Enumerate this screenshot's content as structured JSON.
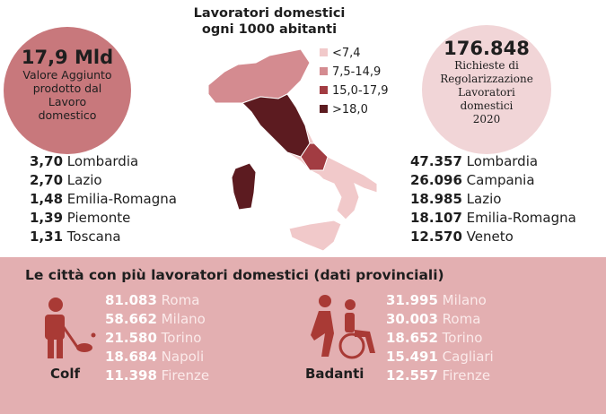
{
  "map": {
    "title_lines": [
      "Lavoratori domestici",
      "ogni 1000 abitanti"
    ],
    "legend": [
      "<7,4",
      "7,5-14,9",
      "15,0-17,9",
      ">18,0"
    ]
  },
  "left_highlight": {
    "value": "17,9 Mld",
    "lines": [
      "Valore Aggiunto",
      "prodotto dal",
      "Lavoro",
      "domestico"
    ]
  },
  "left_list": [
    {
      "value": "3,70",
      "name": "Lombardia"
    },
    {
      "value": "2,70",
      "name": "Lazio"
    },
    {
      "value": "1,48",
      "name": "Emilia-Romagna"
    },
    {
      "value": "1,39",
      "name": "Piemonte"
    },
    {
      "value": "1,31",
      "name": "Toscana"
    }
  ],
  "right_highlight": {
    "value": "176.848",
    "lines": [
      "Richieste di",
      "Regolarizzazione",
      "Lavoratori",
      "domestici",
      "2020"
    ]
  },
  "right_list": [
    {
      "value": "47.357",
      "name": "Lombardia"
    },
    {
      "value": "26.096",
      "name": "Campania"
    },
    {
      "value": "18.985",
      "name": "Lazio"
    },
    {
      "value": "18.107",
      "name": "Emilia-Romagna"
    },
    {
      "value": "12.570",
      "name": "Veneto"
    }
  ],
  "bottom": {
    "title": "Le città con più lavoratori domestici (dati provinciali)",
    "colf": {
      "label": "Colf",
      "rows": [
        {
          "value": "81.083",
          "name": "Roma"
        },
        {
          "value": "58.662",
          "name": "Milano"
        },
        {
          "value": "21.580",
          "name": "Torino"
        },
        {
          "value": "18.684",
          "name": "Napoli"
        },
        {
          "value": "11.398",
          "name": "Firenze"
        }
      ]
    },
    "badanti": {
      "label": "Badanti",
      "rows": [
        {
          "value": "31.995",
          "name": "Milano"
        },
        {
          "value": "30.003",
          "name": "Roma"
        },
        {
          "value": "18.652",
          "name": "Torino"
        },
        {
          "value": "15.491",
          "name": "Cagliari"
        },
        {
          "value": "12.557",
          "name": "Firenze"
        }
      ]
    }
  }
}
